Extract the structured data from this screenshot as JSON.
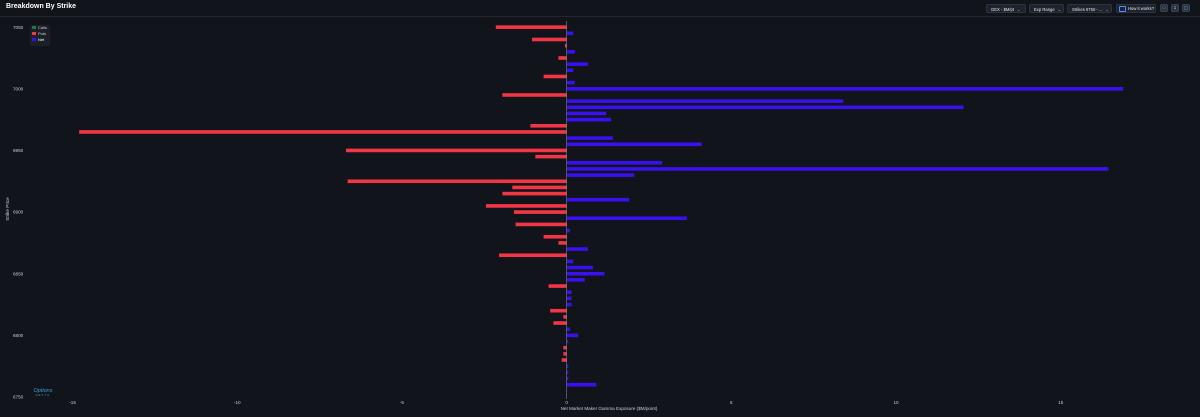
{
  "header": {
    "title": "Breakdown By Strike",
    "gex_select": "GEX - $M/pt",
    "exp_select": "Exp Range",
    "strikes_select": "Strikes 6750 - ...",
    "how_button": "How it works?"
  },
  "brand": {
    "logo_text": "Options",
    "logo_sub": "DEPTH"
  },
  "colors": {
    "calls": "#1d7a3a",
    "puts": "#f23645",
    "net": "#3a10ee",
    "background": "#11141b"
  },
  "chart_data": {
    "type": "bar",
    "orientation": "horizontal",
    "xlabel": "Net Market Maker Gamma Exposure ($M/point)",
    "ylabel": "Strike Price",
    "xlim": [
      -15.2,
      18.5
    ],
    "ylim": [
      6750,
      7055
    ],
    "x_ticks": [
      -15,
      -10,
      -5,
      0,
      5,
      10,
      15
    ],
    "y_ticks": [
      6750,
      6800,
      6850,
      6900,
      6950,
      7000,
      7050
    ],
    "legend": {
      "position": "top-left",
      "entries": [
        "Calls",
        "Puts",
        "Net"
      ]
    },
    "grid": false,
    "series": [
      {
        "name": "Net",
        "values": [
          [
            7050,
            -2.15
          ],
          [
            7045,
            0.2
          ],
          [
            7040,
            -1.05
          ],
          [
            7035,
            -0.05
          ],
          [
            7030,
            0.25
          ],
          [
            7025,
            -0.25
          ],
          [
            7020,
            0.65
          ],
          [
            7015,
            0.2
          ],
          [
            7010,
            -0.7
          ],
          [
            7005,
            0.25
          ],
          [
            7000,
            16.9
          ],
          [
            6995,
            -1.95
          ],
          [
            6990,
            8.4
          ],
          [
            6985,
            12.05
          ],
          [
            6980,
            1.2
          ],
          [
            6975,
            1.35
          ],
          [
            6970,
            -1.1
          ],
          [
            6965,
            -14.8
          ],
          [
            6960,
            1.4
          ],
          [
            6955,
            4.1
          ],
          [
            6950,
            -6.7
          ],
          [
            6945,
            -0.95
          ],
          [
            6940,
            2.9
          ],
          [
            6935,
            16.45
          ],
          [
            6930,
            2.05
          ],
          [
            6925,
            -6.65
          ],
          [
            6920,
            -1.65
          ],
          [
            6915,
            -1.95
          ],
          [
            6910,
            1.9
          ],
          [
            6905,
            -2.45
          ],
          [
            6900,
            -1.6
          ],
          [
            6895,
            3.65
          ],
          [
            6890,
            -1.55
          ],
          [
            6885,
            0.1
          ],
          [
            6880,
            -0.7
          ],
          [
            6875,
            -0.25
          ],
          [
            6870,
            0.65
          ],
          [
            6865,
            -2.05
          ],
          [
            6860,
            0.2
          ],
          [
            6855,
            0.8
          ],
          [
            6850,
            1.15
          ],
          [
            6845,
            0.55
          ],
          [
            6840,
            -0.55
          ],
          [
            6835,
            0.15
          ],
          [
            6830,
            0.15
          ],
          [
            6825,
            0.15
          ],
          [
            6820,
            -0.5
          ],
          [
            6815,
            -0.1
          ],
          [
            6810,
            -0.4
          ],
          [
            6805,
            0.1
          ],
          [
            6800,
            0.35
          ],
          [
            6795,
            0.05
          ],
          [
            6790,
            -0.1
          ],
          [
            6785,
            -0.1
          ],
          [
            6780,
            -0.15
          ],
          [
            6775,
            0.05
          ],
          [
            6770,
            0.05
          ],
          [
            6765,
            0.05
          ],
          [
            6760,
            0.9
          ]
        ]
      }
    ]
  }
}
